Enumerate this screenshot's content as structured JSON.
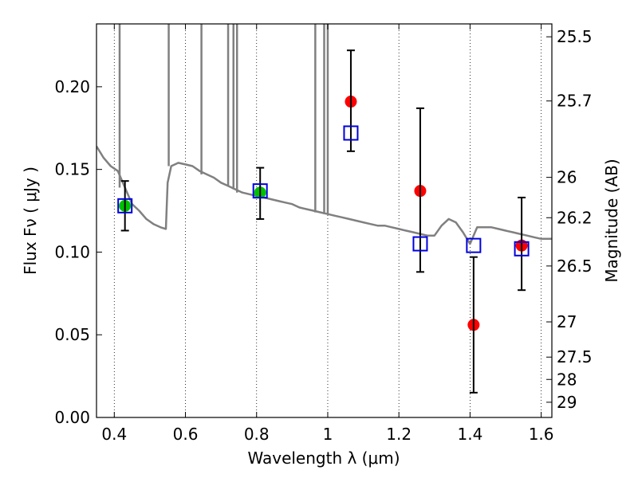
{
  "chart_data": {
    "type": "scatter",
    "xlabel": "Wavelength  λ (μm)",
    "ylabel": "Flux  Fν ( μJy )",
    "y2label": "Magnitude (AB)",
    "xlim": [
      0.35,
      1.63
    ],
    "ylim": [
      0.0,
      0.238
    ],
    "x_ticks": [
      0.4,
      0.6,
      0.8,
      1.0,
      1.2,
      1.4,
      1.6
    ],
    "x_tick_labels": [
      "0.4",
      "0.6",
      "0.8",
      "1",
      "1.2",
      "1.4",
      "1.6"
    ],
    "y_ticks": [
      0.0,
      0.05,
      0.1,
      0.15,
      0.2
    ],
    "y_tick_labels": [
      "0.00",
      "0.05",
      "0.10",
      "0.15",
      "0.20"
    ],
    "y2_ticks": [
      {
        "label": "25.5",
        "flux": 0.2302
      },
      {
        "label": "25.7",
        "flux": 0.1914
      },
      {
        "label": "26",
        "flux": 0.1452
      },
      {
        "label": "26.2",
        "flux": 0.1208
      },
      {
        "label": "26.5",
        "flux": 0.0916
      },
      {
        "label": "27",
        "flux": 0.0578
      },
      {
        "label": "27.5",
        "flux": 0.0365
      },
      {
        "label": "28",
        "flux": 0.023
      },
      {
        "label": "29",
        "flux": 0.0092
      }
    ],
    "grid": "dotted-vertical",
    "series": [
      {
        "kind": "line",
        "color": "#808080",
        "x": [
          0.35,
          0.37,
          0.39,
          0.41,
          0.43,
          0.45,
          0.47,
          0.49,
          0.51,
          0.53,
          0.545,
          0.55,
          0.56,
          0.58,
          0.6,
          0.62,
          0.64,
          0.66,
          0.68,
          0.7,
          0.72,
          0.74,
          0.76,
          0.78,
          0.8,
          0.82,
          0.84,
          0.86,
          0.88,
          0.9,
          0.92,
          0.94,
          0.96,
          0.98,
          1.0,
          1.02,
          1.04,
          1.06,
          1.08,
          1.1,
          1.12,
          1.14,
          1.16,
          1.18,
          1.2,
          1.22,
          1.24,
          1.26,
          1.28,
          1.3,
          1.32,
          1.34,
          1.36,
          1.38,
          1.4,
          1.42,
          1.44,
          1.46,
          1.48,
          1.5,
          1.52,
          1.54,
          1.56,
          1.58,
          1.6,
          1.63
        ],
        "y": [
          0.164,
          0.157,
          0.152,
          0.149,
          0.139,
          0.129,
          0.125,
          0.12,
          0.117,
          0.115,
          0.114,
          0.142,
          0.152,
          0.154,
          0.153,
          0.152,
          0.149,
          0.147,
          0.145,
          0.142,
          0.14,
          0.138,
          0.136,
          0.135,
          0.134,
          0.133,
          0.132,
          0.131,
          0.13,
          0.129,
          0.127,
          0.126,
          0.125,
          0.124,
          0.123,
          0.122,
          0.121,
          0.12,
          0.119,
          0.118,
          0.117,
          0.116,
          0.116,
          0.115,
          0.114,
          0.113,
          0.112,
          0.111,
          0.11,
          0.11,
          0.116,
          0.12,
          0.118,
          0.112,
          0.105,
          0.115,
          0.115,
          0.115,
          0.114,
          0.113,
          0.112,
          0.111,
          0.11,
          0.109,
          0.108,
          0.108
        ]
      },
      {
        "kind": "points",
        "marker": "circle",
        "color": "#00c000",
        "x": [
          0.43,
          0.81
        ],
        "y": [
          0.128,
          0.136
        ]
      },
      {
        "kind": "points",
        "marker": "circle",
        "color": "#ff0000",
        "x": [
          1.065,
          1.26,
          1.41,
          1.545
        ],
        "y": [
          0.191,
          0.137,
          0.056,
          0.104
        ]
      },
      {
        "kind": "errorbars",
        "color": "#000000",
        "x": [
          0.43,
          0.81,
          1.065,
          1.26,
          1.41,
          1.545
        ],
        "y_low": [
          0.113,
          0.12,
          0.161,
          0.088,
          0.015,
          0.077
        ],
        "y_high": [
          0.143,
          0.151,
          0.222,
          0.187,
          0.097,
          0.133
        ]
      },
      {
        "kind": "points",
        "marker": "open-square",
        "color": "#0000dd",
        "x": [
          0.43,
          0.81,
          1.065,
          1.26,
          1.41,
          1.545
        ],
        "y": [
          0.128,
          0.137,
          0.172,
          0.105,
          0.104,
          0.102
        ]
      }
    ]
  }
}
